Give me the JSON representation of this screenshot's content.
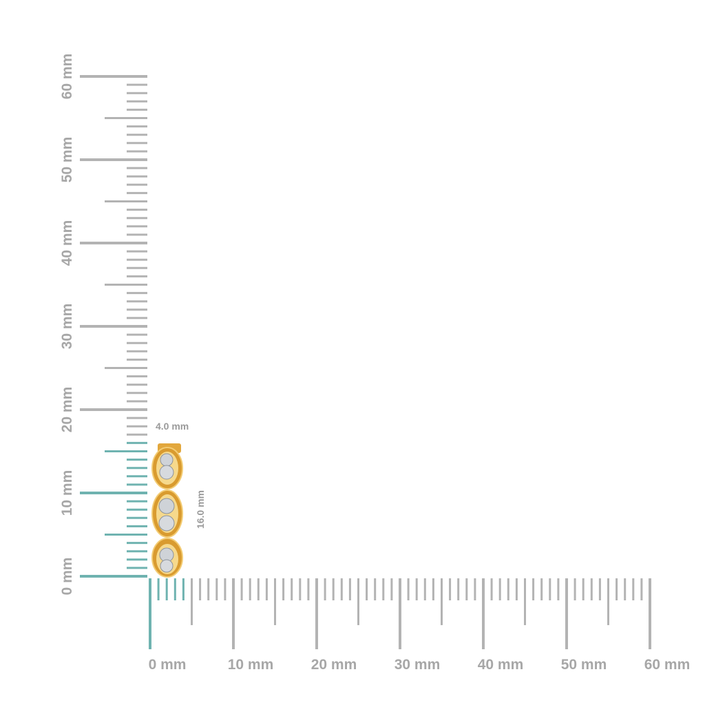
{
  "rulers": {
    "x_labels": [
      "0 mm",
      "10 mm",
      "20 mm",
      "30 mm",
      "40 mm",
      "50 mm",
      "60 mm"
    ],
    "y_labels": [
      "0 mm",
      "10 mm",
      "20 mm",
      "30 mm",
      "40 mm",
      "50 mm",
      "60 mm"
    ]
  },
  "dimensions": {
    "width": "4.0 mm",
    "height": "16.0 mm"
  }
}
